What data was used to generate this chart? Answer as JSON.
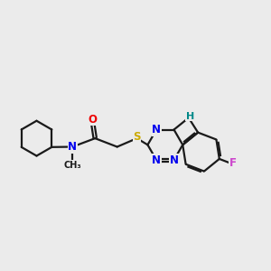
{
  "bg_color": "#ebebeb",
  "bond_color": "#1a1a1a",
  "atom_colors": {
    "N": "#0000ee",
    "O": "#ee0000",
    "S": "#ccaa00",
    "F": "#cc44cc",
    "NH": "#008888",
    "C": "#1a1a1a"
  },
  "bond_lw": 1.6,
  "font_size": 8.5
}
